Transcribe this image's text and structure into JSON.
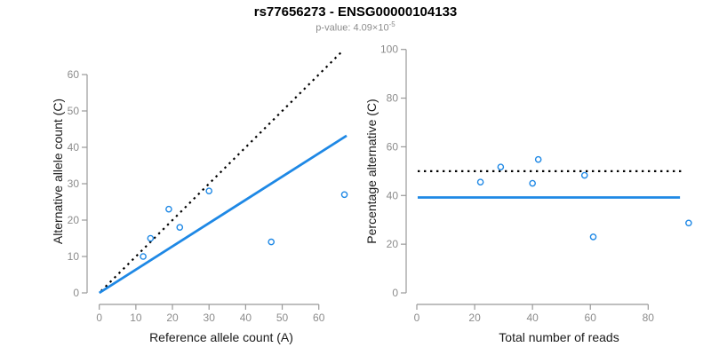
{
  "header": {
    "title": "rs77656273 - ENSG00000104133",
    "p_value_prefix": "p-value: 4.09×10",
    "p_value_exponent": "-5"
  },
  "colors": {
    "accent_blue": "#1E88E5",
    "point_blue": "#1E88E5",
    "dotted_black": "#000000",
    "axis_gray": "#999999",
    "tick_text_gray": "#8C8C8C",
    "label_dark": "#1A1A1A"
  },
  "chart_data": [
    {
      "type": "scatter",
      "panel": "left",
      "xlabel": "Reference allele count (A)",
      "ylabel": "Alternative allele count (C)",
      "xticks": [
        0,
        10,
        20,
        30,
        40,
        50,
        60
      ],
      "yticks": [
        0,
        10,
        20,
        30,
        40,
        50,
        60
      ],
      "xlim": [
        0,
        68
      ],
      "ylim": [
        0,
        68
      ],
      "grid": false,
      "points": [
        [
          12,
          10
        ],
        [
          14,
          15
        ],
        [
          19,
          23
        ],
        [
          22,
          18
        ],
        [
          30,
          28
        ],
        [
          47,
          14
        ],
        [
          67,
          27
        ]
      ],
      "lines": [
        {
          "name": "expected-50pct",
          "style": "dotted",
          "color": "#000000",
          "from": [
            0.5,
            0.5
          ],
          "to": [
            66.5,
            66.5
          ],
          "meaning": "identity line y = x (50% alternative)"
        },
        {
          "name": "fitted-ratio",
          "style": "solid",
          "color": "#1E88E5",
          "from": [
            0,
            0
          ],
          "to": [
            67.6,
            43.2
          ],
          "meaning": "fitted ratio, slope 0.64 (39% alternative)"
        }
      ]
    },
    {
      "type": "scatter",
      "panel": "right",
      "xlabel": "Total number of reads",
      "ylabel": "Percentage alternative (C)",
      "xticks": [
        0,
        20,
        40,
        60,
        80
      ],
      "yticks": [
        0,
        20,
        40,
        60,
        80,
        100
      ],
      "xlim": [
        0,
        97
      ],
      "ylim": [
        0,
        100
      ],
      "grid": false,
      "points": [
        [
          22,
          45.5
        ],
        [
          29,
          51.7
        ],
        [
          40,
          45.0
        ],
        [
          42,
          54.8
        ],
        [
          58,
          48.3
        ],
        [
          61,
          23.0
        ],
        [
          94,
          28.7
        ]
      ],
      "lines": [
        {
          "name": "expected-50pct",
          "style": "dotted",
          "color": "#000000",
          "from": [
            0.3,
            50
          ],
          "to": [
            92.5,
            50
          ],
          "meaning": "expected 50% line"
        },
        {
          "name": "fitted-pct",
          "style": "solid",
          "color": "#1E88E5",
          "from": [
            0.3,
            39.2
          ],
          "to": [
            91,
            39.2
          ],
          "meaning": "observed overall percentage ~39%"
        }
      ]
    }
  ]
}
